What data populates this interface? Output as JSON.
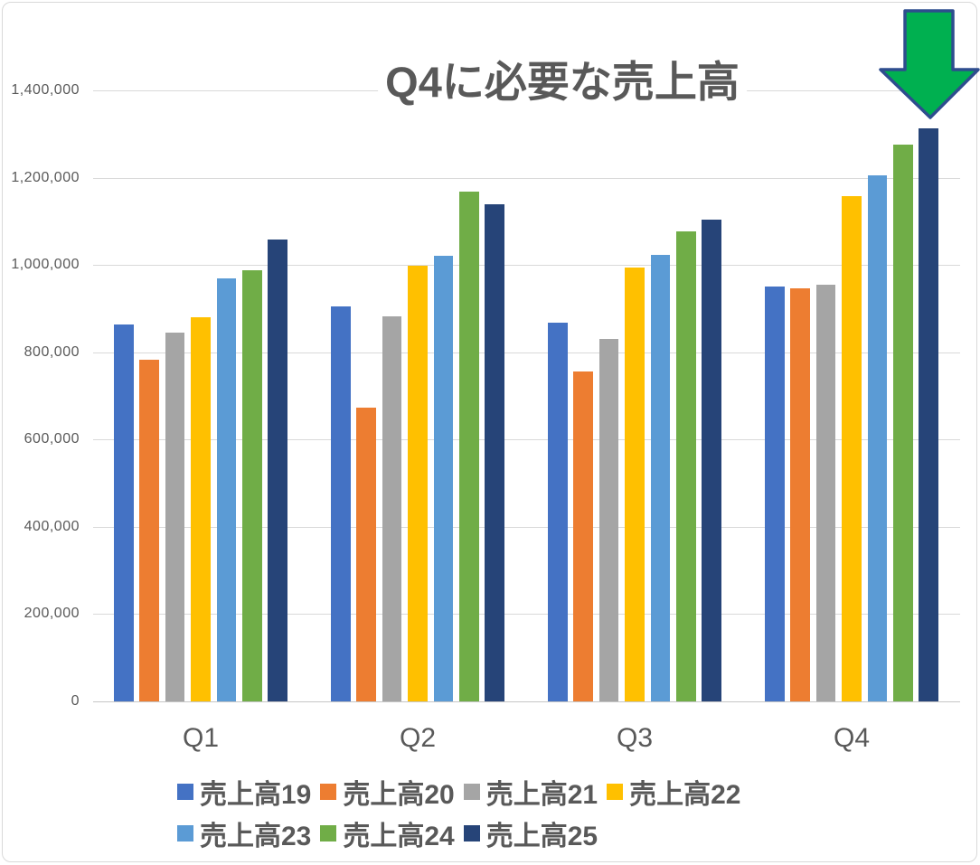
{
  "chart_data": {
    "type": "bar",
    "title": "Q4に必要な売上高",
    "categories": [
      "Q1",
      "Q2",
      "Q3",
      "Q4"
    ],
    "series": [
      {
        "name": "売上高19",
        "color": "#4472C4",
        "values": [
          864000,
          905000,
          868000,
          951000
        ]
      },
      {
        "name": "売上高20",
        "color": "#ED7D31",
        "values": [
          783000,
          673000,
          756000,
          947000
        ]
      },
      {
        "name": "売上高21",
        "color": "#A5A5A5",
        "values": [
          844000,
          882000,
          831000,
          954000
        ]
      },
      {
        "name": "売上高22",
        "color": "#FFC000",
        "values": [
          881000,
          999000,
          995000,
          1157000
        ]
      },
      {
        "name": "売上高23",
        "color": "#5B9BD5",
        "values": [
          970000,
          1021000,
          1023000,
          1205000
        ]
      },
      {
        "name": "売上高24",
        "color": "#70AD47",
        "values": [
          988000,
          1168000,
          1077000,
          1275000
        ]
      },
      {
        "name": "売上高25",
        "color": "#264478",
        "values": [
          1058000,
          1139000,
          1103000,
          1313000
        ]
      }
    ],
    "y_axis": {
      "min": 0,
      "max": 1400000,
      "tick_interval": 200000,
      "tick_labels": [
        "0",
        "200,000",
        "400,000",
        "600,000",
        "800,000",
        "1,000,000",
        "1,200,000",
        "1,400,000"
      ]
    },
    "grid": true,
    "legend_position": "bottom",
    "legend_rows": [
      [
        "売上高19",
        "売上高20",
        "売上高21",
        "売上高22"
      ],
      [
        "売上高23",
        "売上高24",
        "売上高25"
      ]
    ]
  },
  "annotation_arrow": {
    "icon": "down-arrow-icon",
    "fill_color": "#00B050",
    "outline_color": "#2E4D8E"
  },
  "style_colors": {
    "text_gray": "#595959",
    "gridline": "#D9D9D9",
    "frame_border": "#D9D9D9",
    "background": "#FFFFFF"
  }
}
